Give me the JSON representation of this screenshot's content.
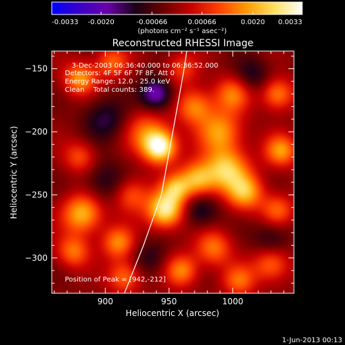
{
  "colorbar": {
    "ticks": [
      "-0.0033",
      "-0.0020",
      "-0.00066",
      "0.00066",
      "0.0020",
      "0.0033"
    ],
    "tick_values": [
      -0.0033,
      -0.002,
      -0.00066,
      0.00066,
      0.002,
      0.0033
    ],
    "range": [
      -0.0033,
      0.0033
    ],
    "unit_label": "(photons cm⁻² s⁻¹ asec⁻²)",
    "colormap": [
      "#0000ff",
      "#3a00c8",
      "#6a00a8",
      "#1a0018",
      "#6a0000",
      "#c80000",
      "#ff4000",
      "#ff9a00",
      "#ffe060",
      "#ffffff"
    ]
  },
  "chart_data": {
    "type": "heatmap",
    "title": "Reconstructed RHESSI Image",
    "xlabel": "Heliocentric X (arcsec)",
    "ylabel": "Heliocentric Y (arcsec)",
    "xlim": [
      858,
      1048
    ],
    "ylim": [
      -328,
      -136
    ],
    "xticks": [
      900,
      950,
      1000
    ],
    "yticks": [
      -150,
      -200,
      -250,
      -300
    ],
    "annotations": [
      "3-Dec-2003 06:36:40.000 to 06:36:52.000",
      "Detectors: 4F 5F 6F 7F 8F, Att 0",
      "Energy Range: 12.0 - 25.0 keV",
      "Clean    Total counts: 389.",
      "Position of Peak = [942,-212]"
    ],
    "peak": {
      "x": 942,
      "y": -212
    },
    "limb_curve": [
      [
        915,
        -328
      ],
      [
        930,
        -290
      ],
      [
        944,
        -250
      ],
      [
        953,
        -200
      ],
      [
        961,
        -155
      ],
      [
        964,
        -136
      ]
    ],
    "sources": [
      {
        "x": 943,
        "y": -212,
        "level": 1.0,
        "sigma": 9
      },
      {
        "x": 947,
        "y": -262,
        "level": 0.92,
        "sigma": 10
      },
      {
        "x": 932,
        "y": -200,
        "level": 0.45,
        "sigma": 12
      },
      {
        "x": 955,
        "y": -245,
        "level": 0.55,
        "sigma": 8
      },
      {
        "x": 972,
        "y": -238,
        "level": 0.7,
        "sigma": 10
      },
      {
        "x": 995,
        "y": -230,
        "level": 0.75,
        "sigma": 12
      },
      {
        "x": 1010,
        "y": -248,
        "level": 0.65,
        "sigma": 10
      },
      {
        "x": 990,
        "y": -200,
        "level": 0.6,
        "sigma": 12
      },
      {
        "x": 970,
        "y": -180,
        "level": 0.55,
        "sigma": 10
      },
      {
        "x": 1000,
        "y": -170,
        "level": 0.5,
        "sigma": 10
      },
      {
        "x": 1035,
        "y": -170,
        "level": 0.55,
        "sigma": 9
      },
      {
        "x": 1038,
        "y": -215,
        "level": 0.6,
        "sigma": 9
      },
      {
        "x": 1035,
        "y": -262,
        "level": 0.45,
        "sigma": 9
      },
      {
        "x": 880,
        "y": -158,
        "level": 0.6,
        "sigma": 9
      },
      {
        "x": 905,
        "y": -145,
        "level": 0.45,
        "sigma": 9
      },
      {
        "x": 880,
        "y": -220,
        "level": 0.4,
        "sigma": 9
      },
      {
        "x": 882,
        "y": -265,
        "level": 0.7,
        "sigma": 11
      },
      {
        "x": 875,
        "y": -295,
        "level": 0.5,
        "sigma": 9
      },
      {
        "x": 910,
        "y": -288,
        "level": 0.55,
        "sigma": 9
      },
      {
        "x": 915,
        "y": -315,
        "level": 0.5,
        "sigma": 9
      },
      {
        "x": 960,
        "y": -310,
        "level": 0.55,
        "sigma": 9
      },
      {
        "x": 985,
        "y": -292,
        "level": 0.5,
        "sigma": 10
      },
      {
        "x": 1005,
        "y": -318,
        "level": 0.45,
        "sigma": 9
      },
      {
        "x": 1030,
        "y": -305,
        "level": 0.5,
        "sigma": 10
      },
      {
        "x": 920,
        "y": -250,
        "level": 0.45,
        "sigma": 10
      },
      {
        "x": 960,
        "y": -150,
        "level": 0.35,
        "sigma": 9
      },
      {
        "x": 940,
        "y": -170,
        "level": -0.6,
        "sigma": 9
      },
      {
        "x": 900,
        "y": -190,
        "level": -0.35,
        "sigma": 12
      },
      {
        "x": 1015,
        "y": -155,
        "level": -0.3,
        "sigma": 10
      },
      {
        "x": 975,
        "y": -262,
        "level": -0.35,
        "sigma": 10
      },
      {
        "x": 900,
        "y": -240,
        "level": -0.3,
        "sigma": 12
      },
      {
        "x": 1030,
        "y": -285,
        "level": -0.3,
        "sigma": 10
      },
      {
        "x": 935,
        "y": -300,
        "level": -0.25,
        "sigma": 10
      }
    ]
  },
  "footer": {
    "date": "1-Jun-2013 00:13"
  }
}
